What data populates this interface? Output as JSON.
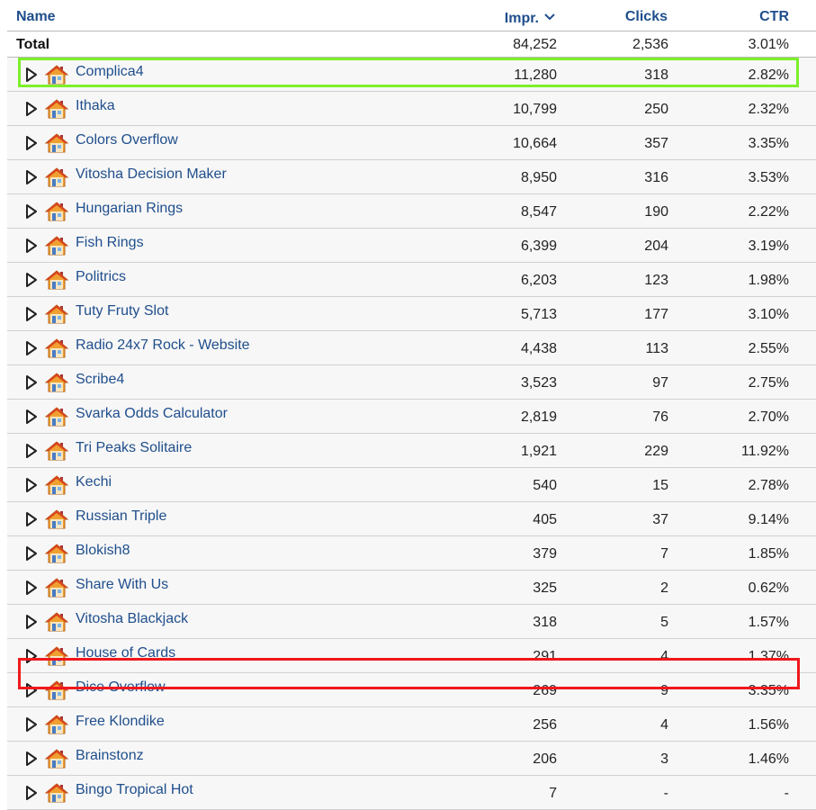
{
  "header": {
    "name": "Name",
    "impr": "Impr.",
    "clicks": "Clicks",
    "ctr": "CTR",
    "sort_icon": "chevron-down-icon"
  },
  "total": {
    "label": "Total",
    "impr": "84,252",
    "clicks": "2,536",
    "ctr": "3.01%"
  },
  "row_icons": {
    "expand": "expand-triangle-icon",
    "app": "home-icon"
  },
  "highlight_colors": {
    "green": "#7cf02a",
    "red": "#f0181d"
  },
  "rows": [
    {
      "name": "Complica4",
      "impr": "11,280",
      "clicks": "318",
      "ctr": "2.82%"
    },
    {
      "name": "Ithaka",
      "impr": "10,799",
      "clicks": "250",
      "ctr": "2.32%"
    },
    {
      "name": "Colors Overflow",
      "impr": "10,664",
      "clicks": "357",
      "ctr": "3.35%"
    },
    {
      "name": "Vitosha Decision Maker",
      "impr": "8,950",
      "clicks": "316",
      "ctr": "3.53%"
    },
    {
      "name": "Hungarian Rings",
      "impr": "8,547",
      "clicks": "190",
      "ctr": "2.22%"
    },
    {
      "name": "Fish Rings",
      "impr": "6,399",
      "clicks": "204",
      "ctr": "3.19%"
    },
    {
      "name": "Politrics",
      "impr": "6,203",
      "clicks": "123",
      "ctr": "1.98%"
    },
    {
      "name": "Tuty Fruty Slot",
      "impr": "5,713",
      "clicks": "177",
      "ctr": "3.10%"
    },
    {
      "name": "Radio 24x7 Rock - Website",
      "impr": "4,438",
      "clicks": "113",
      "ctr": "2.55%"
    },
    {
      "name": "Scribe4",
      "impr": "3,523",
      "clicks": "97",
      "ctr": "2.75%"
    },
    {
      "name": "Svarka Odds Calculator",
      "impr": "2,819",
      "clicks": "76",
      "ctr": "2.70%"
    },
    {
      "name": "Tri Peaks Solitaire",
      "impr": "1,921",
      "clicks": "229",
      "ctr": "11.92%"
    },
    {
      "name": "Kechi",
      "impr": "540",
      "clicks": "15",
      "ctr": "2.78%"
    },
    {
      "name": "Russian Triple",
      "impr": "405",
      "clicks": "37",
      "ctr": "9.14%"
    },
    {
      "name": "Blokish8",
      "impr": "379",
      "clicks": "7",
      "ctr": "1.85%"
    },
    {
      "name": "Share With Us",
      "impr": "325",
      "clicks": "2",
      "ctr": "0.62%"
    },
    {
      "name": "Vitosha Blackjack",
      "impr": "318",
      "clicks": "5",
      "ctr": "1.57%"
    },
    {
      "name": "House of Cards",
      "impr": "291",
      "clicks": "4",
      "ctr": "1.37%"
    },
    {
      "name": "Dice Overflow",
      "impr": "269",
      "clicks": "9",
      "ctr": "3.35%"
    },
    {
      "name": "Free Klondike",
      "impr": "256",
      "clicks": "4",
      "ctr": "1.56%"
    },
    {
      "name": "Brainstonz",
      "impr": "206",
      "clicks": "3",
      "ctr": "1.46%"
    },
    {
      "name": "Bingo Tropical Hot",
      "impr": "7",
      "clicks": "-",
      "ctr": "-"
    }
  ]
}
